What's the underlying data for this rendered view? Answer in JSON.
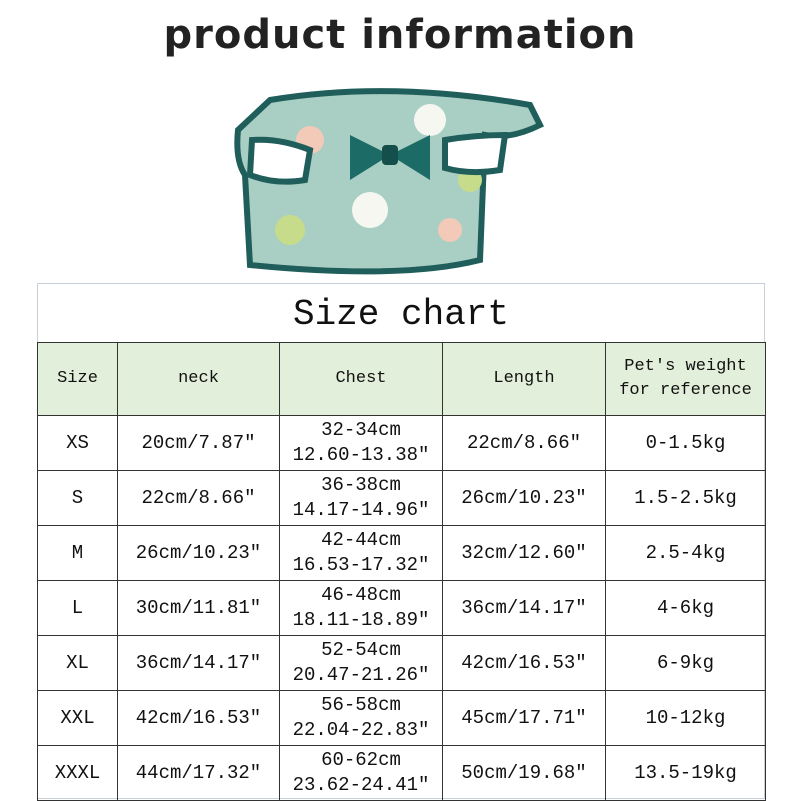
{
  "title": "product information",
  "product_image": {
    "icon": "pet-shirt-floral-with-bow",
    "colors": {
      "trim": "#1f5e5a",
      "fabric": "#a9cfc4",
      "bow": "#1d6b66"
    }
  },
  "size_chart": {
    "title": "Size chart",
    "header_bg": "#e2efda",
    "columns": [
      "Size",
      "neck",
      "Chest",
      "Length",
      "Pet's weight for reference"
    ],
    "rows": [
      {
        "size": "XS",
        "neck": "20cm/7.87″",
        "chest_cm": "32-34cm",
        "chest_in": "12.60-13.38″",
        "length": "22cm/8.66″",
        "weight": "0-1.5kg"
      },
      {
        "size": "S",
        "neck": "22cm/8.66″",
        "chest_cm": "36-38cm",
        "chest_in": "14.17-14.96″",
        "length": "26cm/10.23″",
        "weight": "1.5-2.5kg"
      },
      {
        "size": "M",
        "neck": "26cm/10.23″",
        "chest_cm": "42-44cm",
        "chest_in": "16.53-17.32″",
        "length": "32cm/12.60″",
        "weight": "2.5-4kg"
      },
      {
        "size": "L",
        "neck": "30cm/11.81″",
        "chest_cm": "46-48cm",
        "chest_in": "18.11-18.89″",
        "length": "36cm/14.17″",
        "weight": "4-6kg"
      },
      {
        "size": "XL",
        "neck": "36cm/14.17″",
        "chest_cm": "52-54cm",
        "chest_in": "20.47-21.26″",
        "length": "42cm/16.53″",
        "weight": "6-9kg"
      },
      {
        "size": "XXL",
        "neck": "42cm/16.53″",
        "chest_cm": "56-58cm",
        "chest_in": "22.04-22.83″",
        "length": "45cm/17.71″",
        "weight": "10-12kg"
      },
      {
        "size": "XXXL",
        "neck": "44cm/17.32″",
        "chest_cm": "60-62cm",
        "chest_in": "23.62-24.41″",
        "length": "50cm/19.68″",
        "weight": "13.5-19kg"
      }
    ]
  }
}
